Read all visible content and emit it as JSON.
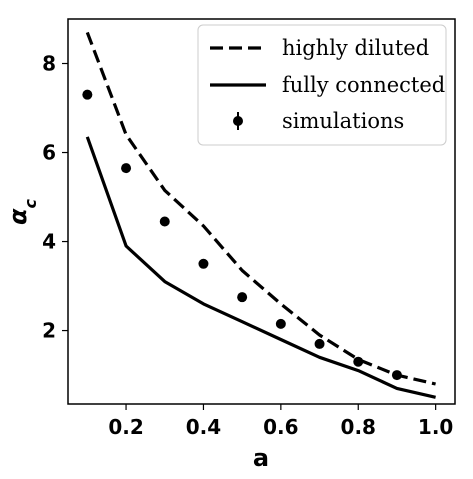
{
  "chart_data": {
    "type": "line",
    "xlabel": "a",
    "ylabel": "α_c",
    "xlim": [
      0.05,
      1.05
    ],
    "ylim": [
      0.35,
      9.0
    ],
    "xticks": [
      0.2,
      0.4,
      0.6,
      0.8,
      1.0
    ],
    "xtick_labels": [
      "0.2",
      "0.4",
      "0.6",
      "0.8",
      "1.0"
    ],
    "yticks": [
      2,
      4,
      6,
      8
    ],
    "ytick_labels": [
      "2",
      "4",
      "6",
      "8"
    ],
    "grid": false,
    "legend_position": "top-right",
    "series": [
      {
        "name": "highly diluted",
        "style": "dashed-line",
        "color": "#000000",
        "x": [
          0.1,
          0.2,
          0.3,
          0.4,
          0.5,
          0.6,
          0.7,
          0.8,
          0.9,
          1.0
        ],
        "y": [
          8.7,
          6.4,
          5.15,
          4.35,
          3.35,
          2.6,
          1.9,
          1.35,
          1.0,
          0.8
        ]
      },
      {
        "name": "fully connected",
        "style": "solid-line",
        "color": "#000000",
        "x": [
          0.1,
          0.2,
          0.3,
          0.4,
          0.5,
          0.6,
          0.7,
          0.8,
          0.9,
          1.0
        ],
        "y": [
          6.35,
          3.9,
          3.1,
          2.6,
          2.2,
          1.8,
          1.4,
          1.1,
          0.7,
          0.5
        ]
      },
      {
        "name": "simulations",
        "style": "markers-errorbar",
        "color": "#000000",
        "x": [
          0.1,
          0.2,
          0.3,
          0.4,
          0.5,
          0.6,
          0.7,
          0.8,
          0.9
        ],
        "y": [
          7.3,
          5.65,
          4.45,
          3.5,
          2.75,
          2.15,
          1.7,
          1.3,
          1.0
        ]
      }
    ]
  }
}
